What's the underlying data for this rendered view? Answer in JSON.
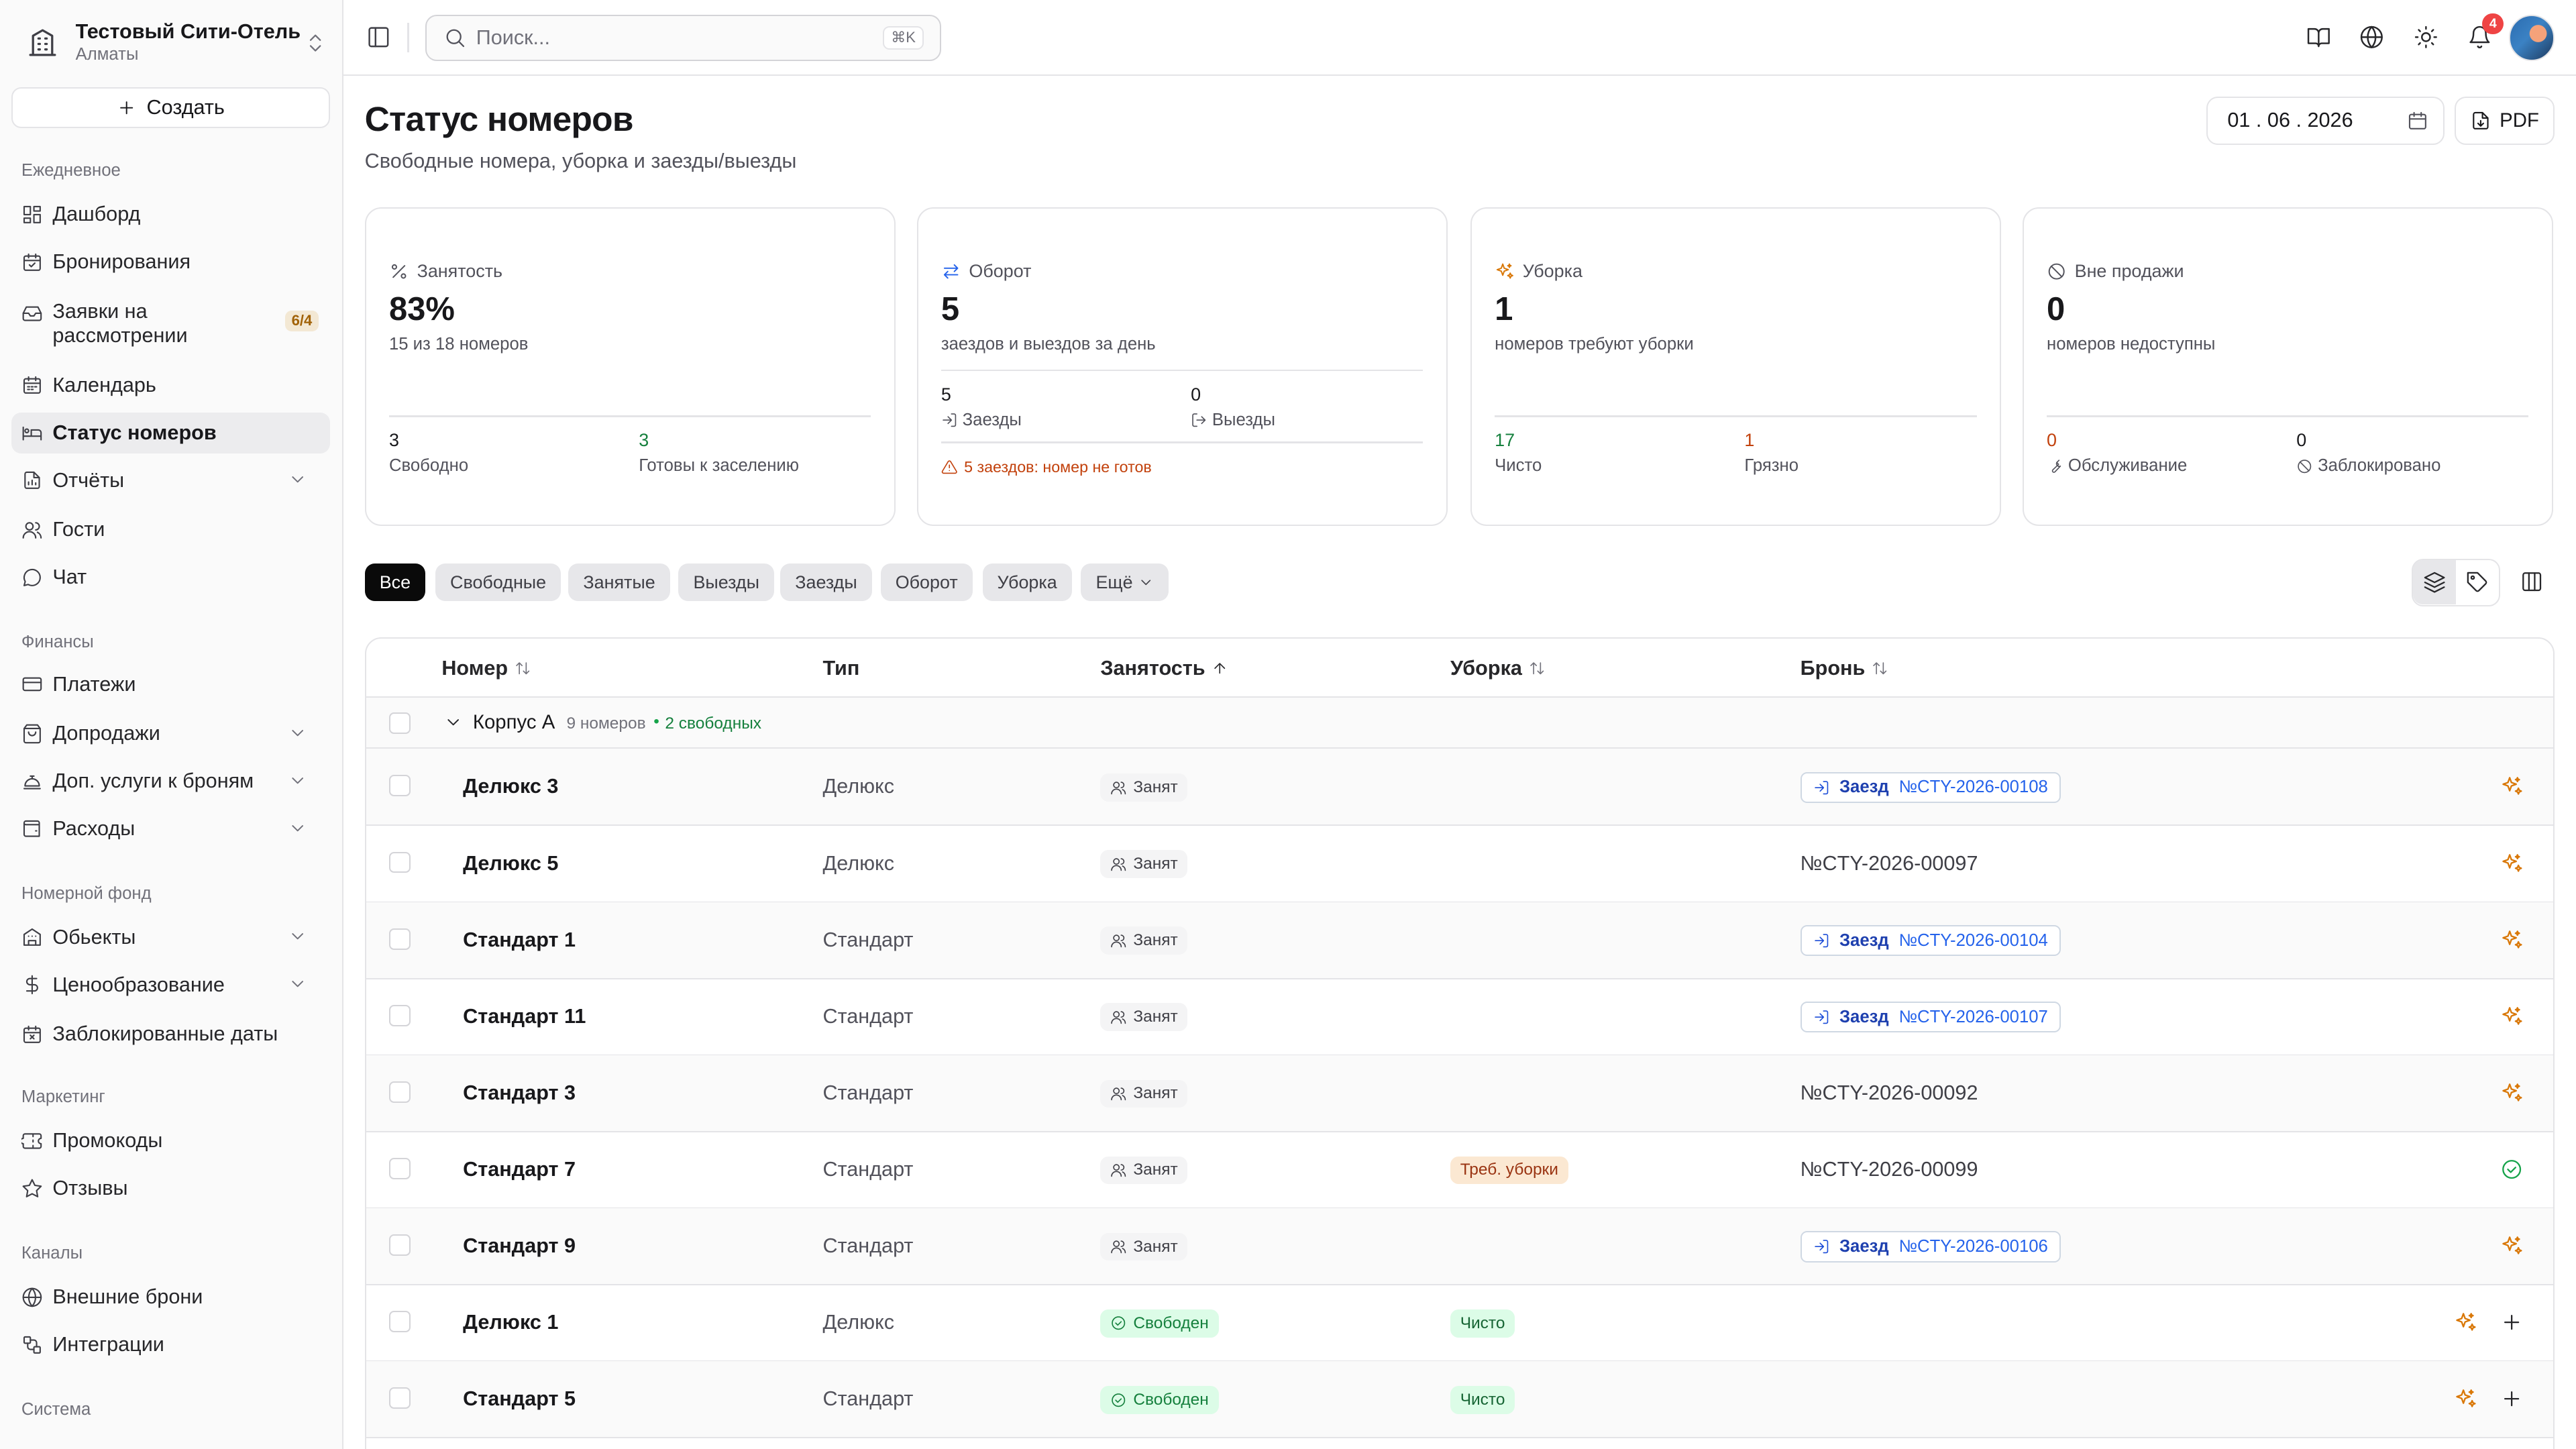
{
  "org": {
    "name": "Тестовый Сити-Отель",
    "city": "Алматы"
  },
  "create_label": "Создать",
  "sidebar": {
    "sections": {
      "daily": "Ежедневное",
      "finance": "Финансы",
      "rooms": "Номерной фонд",
      "marketing": "Маркетинг",
      "channels": "Каналы",
      "system": "Система"
    },
    "items": {
      "dashboard": "Дашборд",
      "bookings": "Бронирования",
      "requests": "Заявки на рассмотрении",
      "requests_badge": "6/4",
      "calendar": "Календарь",
      "room_status": "Статус номеров",
      "reports": "Отчёты",
      "guests": "Гости",
      "chat": "Чат",
      "payments": "Платежи",
      "upsells": "Допродажи",
      "extra_services": "Доп. услуги к броням",
      "expenses": "Расходы",
      "properties": "Обьекты",
      "pricing": "Ценообразование",
      "blocked_dates": "Заблокированные даты",
      "promos": "Промокоды",
      "reviews": "Отзывы",
      "external_bookings": "Внешние брони",
      "integrations": "Интеграции"
    }
  },
  "topbar": {
    "search_placeholder": "Поиск...",
    "search_shortcut": "⌘K",
    "notifications_count": "4"
  },
  "page": {
    "title": "Статус номеров",
    "subtitle": "Свободные номера, уборка и заезды/выезды",
    "date": "01 . 06 . 2026",
    "pdf_label": "PDF"
  },
  "cards": {
    "occupancy": {
      "title": "Занятость",
      "value": "83%",
      "desc": "15 из 18 номеров",
      "a_value": "3",
      "a_label": "Свободно",
      "b_value": "3",
      "b_label": "Готовы к заселению"
    },
    "turnover": {
      "title": "Оборот",
      "value": "5",
      "desc": "заездов и выездов за день",
      "a_value": "5",
      "a_label": "Заезды",
      "b_value": "0",
      "b_label": "Выезды",
      "warning": "5 заездов: номер не готов"
    },
    "cleaning": {
      "title": "Уборка",
      "value": "1",
      "desc": "номеров требуют уборки",
      "a_value": "17",
      "a_label": "Чисто",
      "b_value": "1",
      "b_label": "Грязно"
    },
    "offsale": {
      "title": "Вне продажи",
      "value": "0",
      "desc": "номеров недоступны",
      "a_value": "0",
      "a_label": "Обслуживание",
      "b_value": "0",
      "b_label": "Заблокировано"
    }
  },
  "filters": [
    "Все",
    "Свободные",
    "Занятые",
    "Выезды",
    "Заезды",
    "Оборот",
    "Уборка",
    "Ещё"
  ],
  "table": {
    "columns": {
      "number": "Номер",
      "type": "Тип",
      "occupancy": "Занятость",
      "cleaning": "Уборка",
      "booking": "Бронь"
    },
    "group": {
      "name": "Корпус А",
      "count": "9 номеров",
      "free": "2 свободных"
    },
    "checkin_label": "Заезд",
    "rows": [
      {
        "name": "Делюкс 3",
        "type": "Делюкс",
        "status": "Занят",
        "cleaning": "",
        "booking": "№CTY-2026-00108",
        "checkin": true
      },
      {
        "name": "Делюкс 5",
        "type": "Делюкс",
        "status": "Занят",
        "cleaning": "",
        "booking": "№CTY-2026-00097",
        "checkin": false
      },
      {
        "name": "Стандарт 1",
        "type": "Стандарт",
        "status": "Занят",
        "cleaning": "",
        "booking": "№CTY-2026-00104",
        "checkin": true
      },
      {
        "name": "Стандарт 11",
        "type": "Стандарт",
        "status": "Занят",
        "cleaning": "",
        "booking": "№CTY-2026-00107",
        "checkin": true
      },
      {
        "name": "Стандарт 3",
        "type": "Стандарт",
        "status": "Занят",
        "cleaning": "",
        "booking": "№CTY-2026-00092",
        "checkin": false
      },
      {
        "name": "Стандарт 7",
        "type": "Стандарт",
        "status": "Занят",
        "cleaning": "Треб. уборки",
        "booking": "№CTY-2026-00099",
        "checkin": false
      },
      {
        "name": "Стандарт 9",
        "type": "Стандарт",
        "status": "Занят",
        "cleaning": "",
        "booking": "№CTY-2026-00106",
        "checkin": true
      },
      {
        "name": "Делюкс 1",
        "type": "Делюкс",
        "status": "Свободен",
        "cleaning": "Чисто",
        "booking": "",
        "checkin": false
      },
      {
        "name": "Стандарт 5",
        "type": "Стандарт",
        "status": "Свободен",
        "cleaning": "Чисто",
        "booking": "",
        "checkin": false
      }
    ]
  }
}
